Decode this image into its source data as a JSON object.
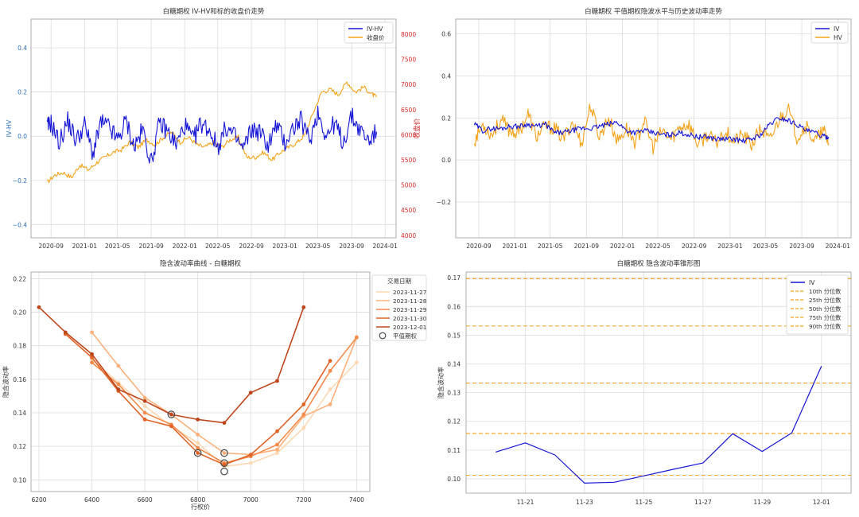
{
  "chart_data": [
    {
      "id": "tl",
      "type": "line",
      "title": "白糖期权 IV-HV和标的收盘价走势",
      "xlabel": "",
      "ylabel": "IV-HV",
      "y2label": "收盘价",
      "x_ticks": [
        "2020-09",
        "2021-01",
        "2021-05",
        "2021-09",
        "2022-01",
        "2022-05",
        "2022-09",
        "2023-01",
        "2023-05",
        "2023-09",
        "2024-01"
      ],
      "ylim": [
        -0.46,
        0.53
      ],
      "y_ticks": [
        "0.4",
        "0.2",
        "0.0",
        "−0.2",
        "−0.4"
      ],
      "y2lim": [
        3950,
        8300
      ],
      "y2_ticks": [
        "8000",
        "7500",
        "7000",
        "6500",
        "6000",
        "5500",
        "5000",
        "4500",
        "4000"
      ],
      "legend": "upper right",
      "grid": true,
      "series": [
        {
          "name": "IV-HV",
          "color": "#1515d6",
          "axis": "left",
          "x": [
            "2020-08-17",
            "2020-09-01",
            "2020-10-01",
            "2020-11-01",
            "2020-12-01",
            "2021-01-01",
            "2021-02-01",
            "2021-03-01",
            "2021-04-01",
            "2021-05-01",
            "2021-06-01",
            "2021-07-01",
            "2021-08-01",
            "2021-09-01",
            "2021-10-01",
            "2021-11-01",
            "2021-12-01",
            "2022-01-01",
            "2022-02-01",
            "2022-03-01",
            "2022-04-01",
            "2022-05-01",
            "2022-06-01",
            "2022-07-01",
            "2022-08-01",
            "2022-09-01",
            "2022-10-01",
            "2022-11-01",
            "2022-12-01",
            "2023-01-01",
            "2023-02-01",
            "2023-03-01",
            "2023-04-01",
            "2023-05-01",
            "2023-06-01",
            "2023-07-01",
            "2023-08-01",
            "2023-09-01",
            "2023-10-01",
            "2023-11-01",
            "2023-12-01"
          ],
          "values": [
            0.04,
            0.06,
            -0.03,
            0.07,
            -0.02,
            0.05,
            -0.08,
            0.06,
            0.04,
            -0.02,
            0.07,
            -0.05,
            0.03,
            -0.12,
            0.06,
            0.02,
            -0.04,
            0.05,
            -0.02,
            0.06,
            0.03,
            -0.05,
            0.04,
            0.0,
            -0.06,
            0.03,
            0.02,
            -0.04,
            0.05,
            -0.03,
            0.04,
            0.07,
            -0.02,
            0.11,
            0.0,
            0.06,
            -0.03,
            0.09,
            0.03,
            -0.02,
            0.02
          ]
        },
        {
          "name": "收盘价",
          "color": "#f5a31a",
          "axis": "right",
          "x": [
            "2020-08-17",
            "2020-09-15",
            "2020-10-15",
            "2020-11-15",
            "2020-12-15",
            "2021-01-15",
            "2021-02-15",
            "2021-03-15",
            "2021-04-15",
            "2021-05-15",
            "2021-06-15",
            "2021-07-15",
            "2021-08-15",
            "2021-09-15",
            "2021-10-15",
            "2021-11-15",
            "2021-12-15",
            "2022-01-15",
            "2022-02-15",
            "2022-03-15",
            "2022-04-15",
            "2022-05-15",
            "2022-06-15",
            "2022-07-15",
            "2022-08-15",
            "2022-09-15",
            "2022-10-15",
            "2022-11-15",
            "2022-12-15",
            "2023-01-15",
            "2023-02-15",
            "2023-03-15",
            "2023-04-15",
            "2023-05-15",
            "2023-06-15",
            "2023-07-15",
            "2023-08-15",
            "2023-09-15",
            "2023-10-15",
            "2023-11-15",
            "2023-12-01"
          ],
          "values": [
            5050,
            5200,
            5250,
            5150,
            5400,
            5300,
            5450,
            5550,
            5650,
            5700,
            5850,
            5750,
            5900,
            5800,
            5950,
            6050,
            5850,
            5950,
            5800,
            5750,
            5850,
            5750,
            5900,
            5950,
            5550,
            5550,
            5650,
            5500,
            5650,
            5750,
            5850,
            6000,
            6450,
            6850,
            6900,
            6800,
            7050,
            6850,
            6950,
            6800,
            6750
          ]
        }
      ]
    },
    {
      "id": "tr",
      "type": "line",
      "title": "白糖期权 平值期权隐波水平与历史波动率走势",
      "xlabel": "",
      "ylabel": "",
      "x_ticks": [
        "2020-09",
        "2021-01",
        "2021-05",
        "2021-09",
        "2022-01",
        "2022-05",
        "2022-09",
        "2023-01",
        "2023-05",
        "2023-09",
        "2024-01"
      ],
      "ylim": [
        -0.37,
        0.67
      ],
      "y_ticks": [
        "0.6",
        "0.4",
        "0.2",
        "0.0",
        "−0.2"
      ],
      "legend": "upper right",
      "grid": true,
      "series": [
        {
          "name": "IV",
          "color": "#1515d6",
          "x": [
            "2020-08-17",
            "2020-09-15",
            "2020-10-15",
            "2020-11-15",
            "2020-12-15",
            "2021-01-15",
            "2021-02-15",
            "2021-03-15",
            "2021-04-15",
            "2021-05-15",
            "2021-06-15",
            "2021-07-15",
            "2021-08-15",
            "2021-09-15",
            "2021-10-15",
            "2021-11-15",
            "2021-12-15",
            "2022-01-15",
            "2022-02-15",
            "2022-03-15",
            "2022-04-15",
            "2022-05-15",
            "2022-06-15",
            "2022-07-15",
            "2022-08-15",
            "2022-09-15",
            "2022-10-15",
            "2022-11-15",
            "2022-12-15",
            "2023-01-15",
            "2023-02-15",
            "2023-03-15",
            "2023-04-15",
            "2023-05-15",
            "2023-06-15",
            "2023-07-15",
            "2023-08-15",
            "2023-09-15",
            "2023-10-15",
            "2023-11-15",
            "2023-12-01"
          ],
          "values": [
            0.17,
            0.14,
            0.15,
            0.15,
            0.16,
            0.16,
            0.17,
            0.16,
            0.17,
            0.13,
            0.13,
            0.14,
            0.15,
            0.15,
            0.16,
            0.17,
            0.18,
            0.14,
            0.13,
            0.14,
            0.13,
            0.12,
            0.12,
            0.13,
            0.12,
            0.11,
            0.11,
            0.1,
            0.1,
            0.1,
            0.09,
            0.1,
            0.12,
            0.17,
            0.2,
            0.19,
            0.17,
            0.14,
            0.13,
            0.11,
            0.11
          ]
        },
        {
          "name": "HV",
          "color": "#f5a31a",
          "x": [
            "2020-08-17",
            "2020-09-15",
            "2020-10-15",
            "2020-11-15",
            "2020-12-15",
            "2021-01-15",
            "2021-02-15",
            "2021-03-15",
            "2021-04-15",
            "2021-05-15",
            "2021-06-15",
            "2021-07-15",
            "2021-08-15",
            "2021-09-15",
            "2021-10-15",
            "2021-11-15",
            "2021-12-15",
            "2022-01-15",
            "2022-02-15",
            "2022-03-15",
            "2022-04-15",
            "2022-05-15",
            "2022-06-15",
            "2022-07-15",
            "2022-08-15",
            "2022-09-15",
            "2022-10-15",
            "2022-11-15",
            "2022-12-15",
            "2023-01-15",
            "2023-02-15",
            "2023-03-15",
            "2023-04-15",
            "2023-05-15",
            "2023-06-15",
            "2023-07-15",
            "2023-08-15",
            "2023-09-15",
            "2023-10-15",
            "2023-11-15",
            "2023-12-01"
          ],
          "values": [
            0.09,
            0.17,
            0.12,
            0.19,
            0.14,
            0.13,
            0.22,
            0.11,
            0.16,
            0.15,
            0.1,
            0.18,
            0.08,
            0.26,
            0.11,
            0.2,
            0.09,
            0.15,
            0.08,
            0.19,
            0.06,
            0.14,
            0.1,
            0.16,
            0.17,
            0.07,
            0.12,
            0.08,
            0.14,
            0.09,
            0.12,
            0.07,
            0.15,
            0.09,
            0.19,
            0.25,
            0.11,
            0.16,
            0.09,
            0.14,
            0.08
          ]
        }
      ]
    },
    {
      "id": "bl",
      "type": "line",
      "title": "隐含波动率曲线 - 白糖期权",
      "xlabel": "行权价",
      "ylabel": "隐含波动率",
      "xlim": [
        6170,
        7450
      ],
      "x_ticks": [
        6200,
        6400,
        6600,
        6800,
        7000,
        7200,
        7400
      ],
      "ylim": [
        0.093,
        0.224
      ],
      "y_ticks": [
        0.1,
        0.12,
        0.14,
        0.16,
        0.18,
        0.2,
        0.22
      ],
      "legend": "upper right",
      "legend_title": "交易日期",
      "grid": true,
      "series": [
        {
          "name": "2023-11-27",
          "color": "#fdd8b3",
          "x": [
            6400,
            6500,
            6600,
            6700,
            6800,
            6900,
            7000,
            7100,
            7200,
            7300,
            7400
          ],
          "values": [
            0.172,
            0.158,
            0.144,
            0.132,
            0.122,
            0.108,
            0.11,
            0.116,
            0.131,
            0.154,
            0.17
          ]
        },
        {
          "name": "2023-11-28",
          "color": "#fdb07a",
          "x": [
            6400,
            6500,
            6600,
            6700,
            6800,
            6900,
            7000,
            7100,
            7200,
            7300,
            7400
          ],
          "values": [
            0.188,
            0.168,
            0.149,
            0.139,
            0.127,
            0.116,
            0.115,
            0.118,
            0.138,
            0.145,
            0.185
          ]
        },
        {
          "name": "2023-11-29",
          "color": "#f58b4b",
          "x": [
            6400,
            6500,
            6600,
            6700,
            6800,
            6900,
            7000,
            7100,
            7200,
            7300,
            7400
          ],
          "values": [
            0.17,
            0.157,
            0.14,
            0.133,
            0.119,
            0.11,
            0.114,
            0.121,
            0.139,
            0.165,
            0.185
          ]
        },
        {
          "name": "2023-11-30",
          "color": "#e06428",
          "x": [
            6300,
            6400,
            6500,
            6600,
            6700,
            6800,
            6900,
            7000,
            7100,
            7200,
            7300
          ],
          "values": [
            0.187,
            0.173,
            0.153,
            0.136,
            0.132,
            0.116,
            0.109,
            0.115,
            0.129,
            0.145,
            0.171
          ]
        },
        {
          "name": "2023-12-01",
          "color": "#bf461b",
          "x": [
            6200,
            6300,
            6400,
            6500,
            6600,
            6700,
            6800,
            6900,
            7000,
            7100,
            7200
          ],
          "values": [
            0.203,
            0.188,
            0.175,
            0.154,
            0.147,
            0.139,
            0.136,
            0.134,
            0.152,
            0.159,
            0.203
          ]
        }
      ],
      "atm_markers": {
        "name": "平值期权",
        "points": [
          {
            "x": 6700,
            "y": 0.139
          },
          {
            "x": 6800,
            "y": 0.116
          },
          {
            "x": 6900,
            "y": 0.116
          },
          {
            "x": 6900,
            "y": 0.11
          },
          {
            "x": 6900,
            "y": 0.105
          }
        ]
      }
    },
    {
      "id": "br",
      "type": "line",
      "title": "白糖期权 隐含波动率锥形图",
      "xlabel": "",
      "ylabel": "隐含波动率",
      "x": [
        "2023-11-20",
        "2023-11-21",
        "2023-11-22",
        "2023-11-23",
        "2023-11-24",
        "2023-11-25",
        "2023-11-26",
        "2023-11-27",
        "2023-11-28",
        "2023-11-29",
        "2023-11-30",
        "2023-12-01"
      ],
      "x_ticks": [
        "11-21",
        "11-23",
        "11-25",
        "11-27",
        "11-29",
        "12-01"
      ],
      "ylim": [
        0.095,
        0.172
      ],
      "y_ticks": [
        0.1,
        0.11,
        0.12,
        0.13,
        0.14,
        0.15,
        0.16,
        0.17
      ],
      "legend": "upper right",
      "grid": true,
      "series": [
        {
          "name": "IV",
          "color": "#1515d6",
          "values": [
            0.1093,
            0.1125,
            0.1083,
            0.0985,
            0.0988,
            0.101,
            0.1033,
            0.1055,
            0.1157,
            0.1095,
            0.116,
            0.1392
          ]
        }
      ],
      "percentiles": [
        {
          "name": "10th 分位数",
          "value": 0.1012,
          "color": "#f5a31a"
        },
        {
          "name": "25th 分位数",
          "value": 0.1158,
          "color": "#f5a31a"
        },
        {
          "name": "50th 分位数",
          "value": 0.1333,
          "color": "#f5a31a"
        },
        {
          "name": "75th 分位数",
          "value": 0.1532,
          "color": "#f5a31a"
        },
        {
          "name": "90th 分位数",
          "value": 0.1697,
          "color": "#f5a31a"
        }
      ]
    }
  ]
}
